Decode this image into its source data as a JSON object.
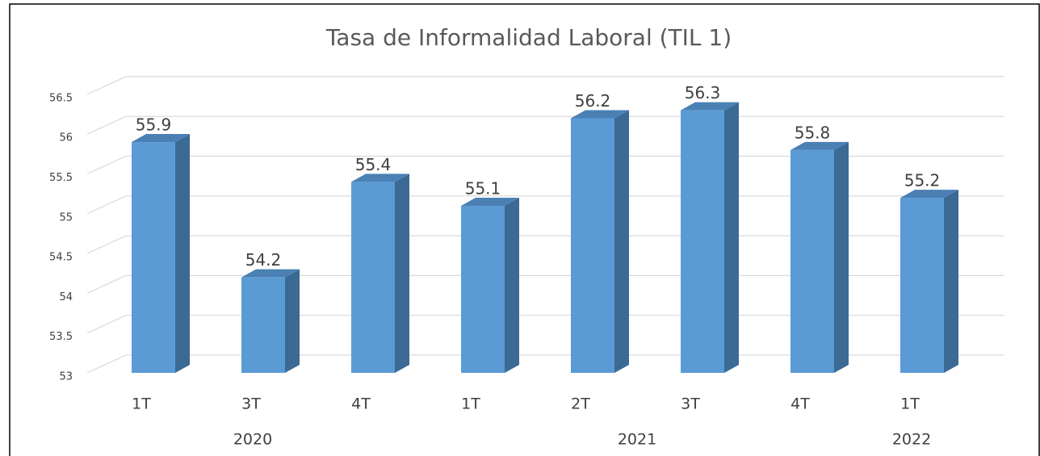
{
  "chart_data": {
    "type": "bar3d",
    "title": "Tasa de Informalidad Laboral (TIL 1)",
    "categories": [
      "1T",
      "3T",
      "4T",
      "1T",
      "2T",
      "3T",
      "4T",
      "1T"
    ],
    "groups": [
      "2020",
      "2021",
      "2022"
    ],
    "group_sizes": [
      3,
      4,
      1
    ],
    "values": [
      55.9,
      54.2,
      55.4,
      55.1,
      56.2,
      56.3,
      55.8,
      55.2
    ],
    "color": "#5b9bd5",
    "ylim": [
      53,
      56.5
    ],
    "yticks": [
      53,
      53.5,
      54,
      54.5,
      55,
      55.5,
      56,
      56.5
    ],
    "grid": true
  }
}
